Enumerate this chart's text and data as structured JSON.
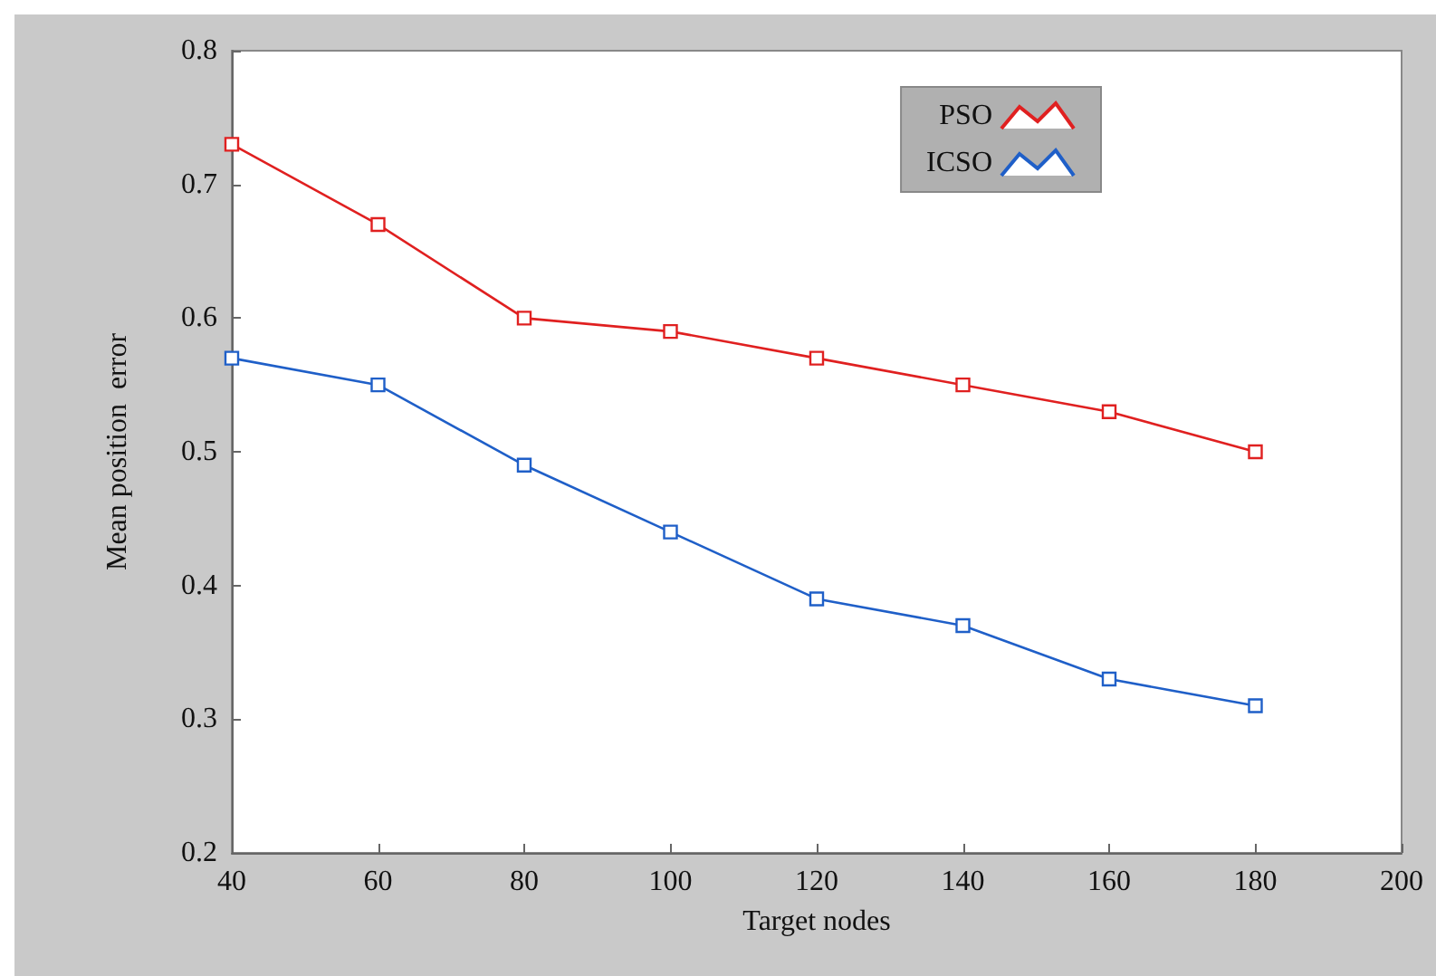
{
  "chart_data": {
    "type": "line",
    "xlabel": "Target nodes",
    "ylabel": "Mean position  error",
    "x": [
      40,
      60,
      80,
      100,
      120,
      140,
      160,
      180
    ],
    "series": [
      {
        "name": "PSO",
        "color": "#e02020",
        "values": [
          0.73,
          0.67,
          0.6,
          0.59,
          0.57,
          0.55,
          0.53,
          0.5
        ]
      },
      {
        "name": "ICSO",
        "color": "#1f5fc8",
        "values": [
          0.57,
          0.55,
          0.49,
          0.44,
          0.39,
          0.37,
          0.33,
          0.31
        ]
      }
    ],
    "xlim": [
      40,
      200
    ],
    "xticks": [
      40,
      60,
      80,
      100,
      120,
      140,
      160,
      180,
      200
    ],
    "ylim": [
      0.2,
      0.8
    ],
    "yticks": [
      0.2,
      0.3,
      0.4,
      0.5,
      0.6,
      0.7,
      0.8
    ],
    "grid": false,
    "legend": "top right",
    "marker": "square",
    "line_style": "solid"
  }
}
